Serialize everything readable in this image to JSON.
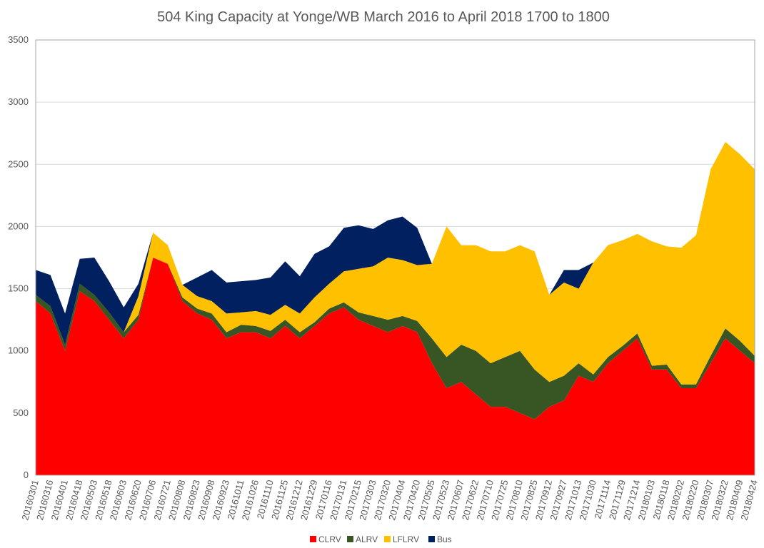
{
  "chart_data": {
    "type": "area",
    "stacked": true,
    "title": "504 King Capacity at Yonge/WB March 2016 to April 2018  1700 to 1800",
    "xlabel": "",
    "ylabel": "",
    "ylim": [
      0,
      3500
    ],
    "y_ticks": [
      0,
      500,
      1000,
      1500,
      2000,
      2500,
      3000,
      3500
    ],
    "grid": true,
    "legend_position": "bottom",
    "categories": [
      "20160301",
      "20160316",
      "20160401",
      "20160418",
      "20160503",
      "20160518",
      "20160603",
      "20160620",
      "20160706",
      "20160721",
      "20160808",
      "20160823",
      "20160908",
      "20160923",
      "20161011",
      "20161026",
      "20161110",
      "20161125",
      "20161212",
      "20161229",
      "20170116",
      "20170131",
      "20170215",
      "20170303",
      "20170320",
      "20170404",
      "20170420",
      "20170505",
      "20170523",
      "20170607",
      "20170622",
      "20170710",
      "20170725",
      "20170810",
      "20170825",
      "20170912",
      "20170927",
      "20171013",
      "20171030",
      "20171114",
      "20171129",
      "20171214",
      "20180103",
      "20180118",
      "20180202",
      "20180220",
      "20180307",
      "20180322",
      "20180409",
      "20180424"
    ],
    "series": [
      {
        "name": "CLRV",
        "color": "#FF0000",
        "values": [
          1400,
          1300,
          1000,
          1480,
          1400,
          1250,
          1100,
          1250,
          1750,
          1700,
          1400,
          1300,
          1250,
          1100,
          1150,
          1150,
          1100,
          1200,
          1100,
          1200,
          1300,
          1350,
          1250,
          1200,
          1150,
          1200,
          1150,
          900,
          700,
          750,
          650,
          550,
          550,
          500,
          450,
          550,
          600,
          800,
          750,
          900,
          1000,
          1100,
          850,
          850,
          700,
          700,
          900,
          1100,
          1000,
          900
        ]
      },
      {
        "name": "ALRV",
        "color": "#375623",
        "values": [
          50,
          60,
          50,
          60,
          50,
          60,
          50,
          40,
          0,
          0,
          30,
          40,
          50,
          50,
          60,
          50,
          60,
          50,
          50,
          30,
          40,
          40,
          60,
          80,
          100,
          80,
          90,
          200,
          250,
          300,
          350,
          350,
          400,
          500,
          400,
          200,
          200,
          100,
          60,
          50,
          40,
          40,
          30,
          40,
          30,
          30,
          60,
          80,
          80,
          60
        ]
      },
      {
        "name": "LFLRV",
        "color": "#FFC000",
        "values": [
          0,
          0,
          0,
          0,
          0,
          0,
          0,
          150,
          200,
          150,
          100,
          100,
          100,
          150,
          100,
          120,
          130,
          120,
          150,
          200,
          200,
          250,
          350,
          400,
          500,
          450,
          450,
          600,
          1050,
          800,
          850,
          900,
          850,
          850,
          950,
          700,
          750,
          600,
          900,
          900,
          850,
          800,
          1000,
          950,
          1100,
          1200,
          1500,
          1500,
          1500,
          1500
        ]
      },
      {
        "name": "Bus",
        "color": "#002060",
        "values": [
          200,
          250,
          250,
          200,
          300,
          250,
          200,
          100,
          0,
          0,
          0,
          150,
          250,
          250,
          250,
          250,
          300,
          350,
          300,
          350,
          300,
          350,
          350,
          300,
          300,
          350,
          300,
          0,
          0,
          0,
          0,
          0,
          0,
          0,
          0,
          0,
          100,
          150,
          0,
          0,
          0,
          0,
          0,
          0,
          0,
          0,
          0,
          0,
          0,
          0
        ]
      }
    ]
  }
}
